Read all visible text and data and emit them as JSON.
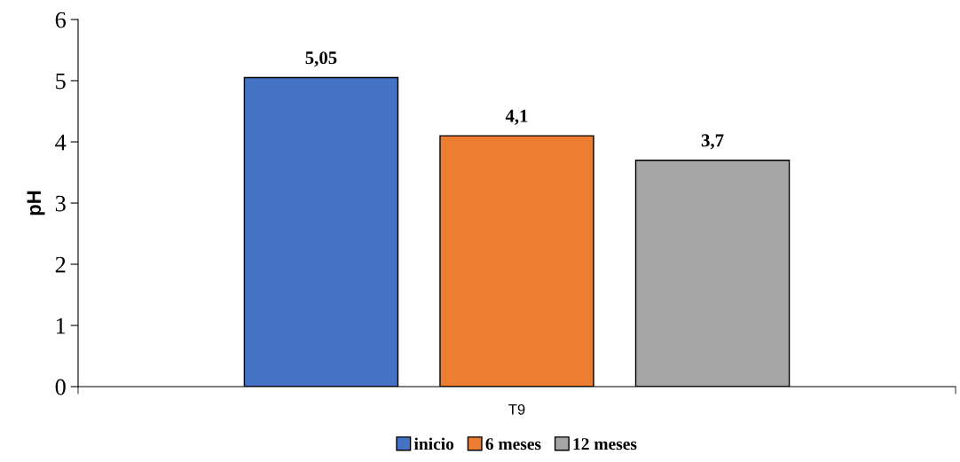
{
  "chart_data": {
    "type": "bar",
    "ylabel": "pH",
    "categories": [
      "T9"
    ],
    "series": [
      {
        "name": "inicio",
        "color": "#4472c4",
        "values": [
          5.05
        ],
        "value_labels": [
          "5,05"
        ]
      },
      {
        "name": "6 meses",
        "color": "#ed7d31",
        "values": [
          4.1
        ],
        "value_labels": [
          "4,1"
        ]
      },
      {
        "name": "12 meses",
        "color": "#a5a5a5",
        "values": [
          3.7
        ],
        "value_labels": [
          "3,7"
        ]
      }
    ],
    "ylim": [
      0,
      6
    ],
    "yticks": [
      0,
      1,
      2,
      3,
      4,
      5,
      6
    ],
    "grid": false,
    "legend": "bottom"
  }
}
